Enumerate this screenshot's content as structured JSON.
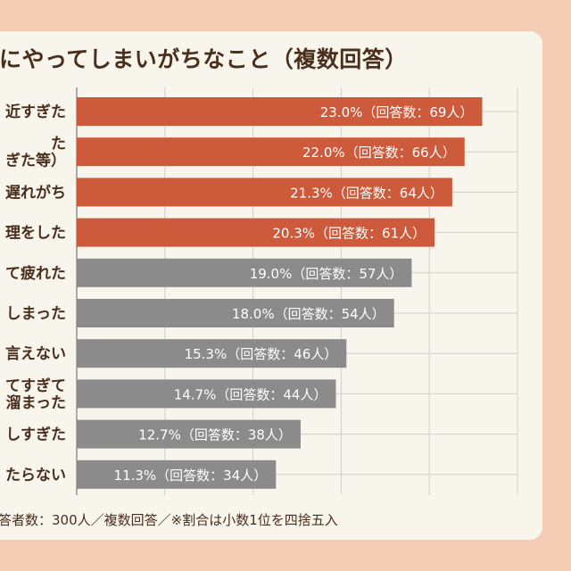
{
  "title": "にやってしまいがちなこと（複数回答）",
  "footnote": "答者数：300人／複数回答／※割合は小数1位を四捨五入",
  "colors": {
    "highlight": "#cc5a3b",
    "normal": "#8b8b8b",
    "text": "#4a2e1c",
    "background": "#f4cdb4",
    "card": "#f8f5ec"
  },
  "chart_data": {
    "type": "bar",
    "orientation": "horizontal",
    "categories": [
      "近すぎた",
      "た\nぎた等）",
      "遅れがち",
      "理をした",
      "て疲れた",
      "しまった",
      "言えない",
      "てすぎて\n溜まった",
      "しすぎた",
      "たらない"
    ],
    "values": [
      23.0,
      22.0,
      21.3,
      20.3,
      19.0,
      18.0,
      15.3,
      14.7,
      12.7,
      11.3
    ],
    "counts": [
      69,
      66,
      64,
      61,
      57,
      54,
      46,
      44,
      38,
      34
    ],
    "data_labels": [
      "23.0%（回答数：69人）",
      "22.0%（回答数：66人）",
      "21.3%（回答数：64人）",
      "20.3%（回答数：61人）",
      "19.0%（回答数：57人）",
      "18.0%（回答数：54人）",
      "15.3%（回答数：46人）",
      "14.7%（回答数：44人）",
      "12.7%（回答数：38人）",
      "11.3%（回答数：34人）"
    ],
    "highlighted_count": 4,
    "xlim": [
      0,
      25
    ],
    "grid": true
  }
}
